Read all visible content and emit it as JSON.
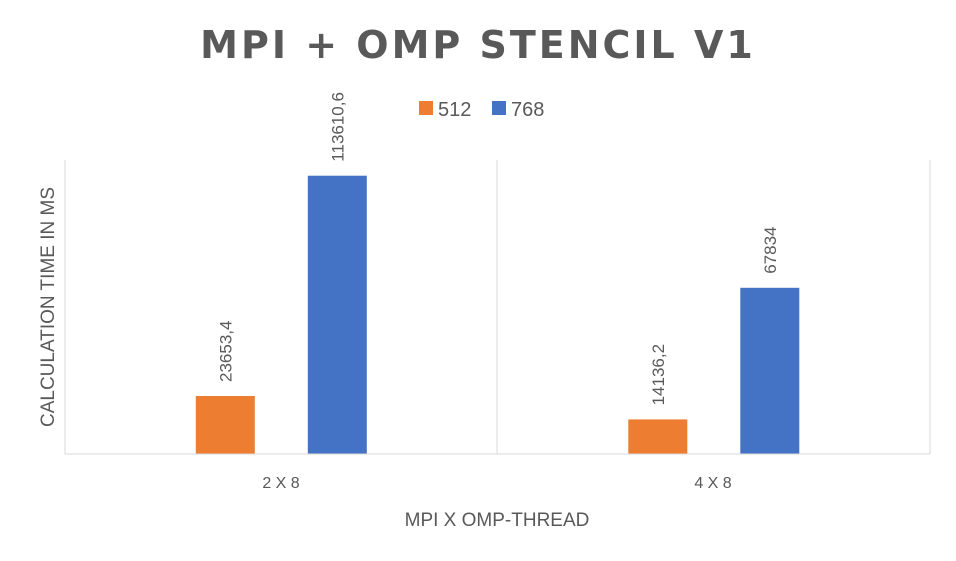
{
  "chart_data": {
    "type": "bar",
    "title": "MPI + OMP STENCIL V1",
    "xlabel": "MPI X OMP-THREAD",
    "ylabel": "CALCULATION TIME IN MS",
    "categories": [
      "2 X 8",
      "4 X 8"
    ],
    "series": [
      {
        "name": "512",
        "color": "#ED7D31",
        "values": [
          23653.4,
          14136.2
        ],
        "labels": [
          "23653,4",
          "14136,2"
        ]
      },
      {
        "name": "768",
        "color": "#4472C4",
        "values": [
          113610.6,
          67834
        ],
        "labels": [
          "113610,6",
          "67834"
        ]
      }
    ],
    "ylim": [
      0,
      120000
    ],
    "legend": "top-center",
    "grid": false
  }
}
